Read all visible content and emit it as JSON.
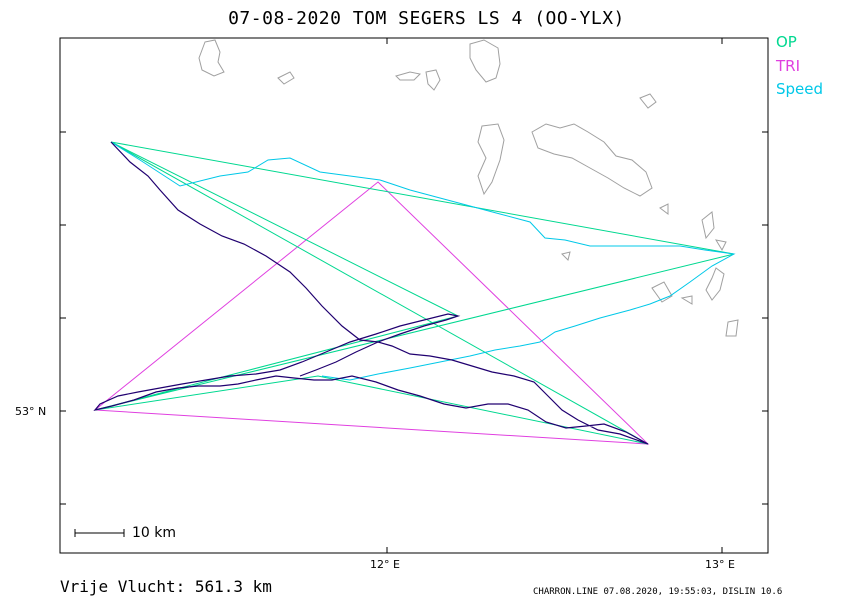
{
  "title": "07-08-2020   TOM SEGERS   LS 4 (OO-YLX)",
  "legend": [
    {
      "label": "OP",
      "color": "#00d890"
    },
    {
      "label": "TRI",
      "color": "#e040e0"
    },
    {
      "label": "Speed",
      "color": "#00c8e8"
    }
  ],
  "axes": {
    "lat_label": "53° N",
    "lon_labels": [
      "12° E",
      "13° E"
    ]
  },
  "scale": {
    "label": "10 km"
  },
  "distance": "Vrije Vlucht:  561.3 km",
  "footer": "CHARRON.LINE 07.08.2020, 19:55:03, DISLIN 10.6",
  "colors": {
    "track": "#200070",
    "coast": "#a0a0a0",
    "frame": "#000000"
  }
}
